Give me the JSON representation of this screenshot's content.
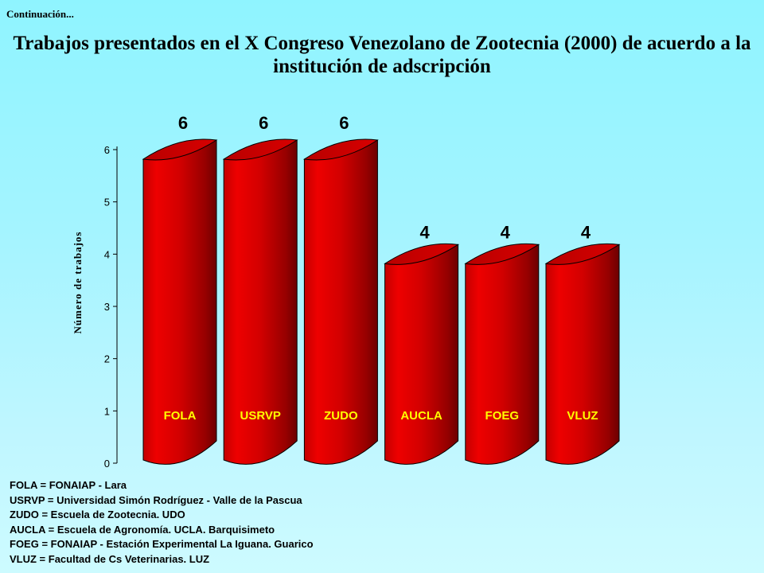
{
  "header": {
    "continuation": "Continuación..."
  },
  "title": "Trabajos presentados en el X Congreso Venezolano de Zootecnia (2000) de acuerdo a la institución de adscripción",
  "chart_data": {
    "type": "bar",
    "title": "Trabajos presentados en el X Congreso Venezolano de Zootecnia (2000) de acuerdo a la institución de adscripción",
    "xlabel": "",
    "ylabel": "Número de trabajos",
    "categories": [
      "FOLA",
      "USRVP",
      "ZUDO",
      "AUCLA",
      "FOEG",
      "VLUZ"
    ],
    "values": [
      6,
      6,
      6,
      4,
      4,
      4
    ],
    "data_labels": [
      "6",
      "6",
      "6",
      "4",
      "4",
      "4"
    ],
    "ylim": [
      0,
      6
    ],
    "yticks": [
      "0",
      "1",
      "2",
      "3",
      "4",
      "5",
      "6"
    ],
    "grid": false,
    "bar_style": "3d-cylinder",
    "colors": {
      "bar": "#e00000",
      "bar_dark": "#7a0000",
      "category_label": "#ffff00"
    }
  },
  "legend": {
    "lines": [
      "FOLA = FONAIAP - Lara",
      "USRVP = Universidad Simón Rodríguez - Valle de la Pascua",
      "ZUDO = Escuela de Zootecnia.  UDO",
      "AUCLA = Escuela de Agronomía. UCLA. Barquisimeto",
      "FOEG = FONAIAP - Estación Experimental La Iguana. Guarico",
      "VLUZ = Facultad de Cs Veterinarias. LUZ"
    ]
  }
}
